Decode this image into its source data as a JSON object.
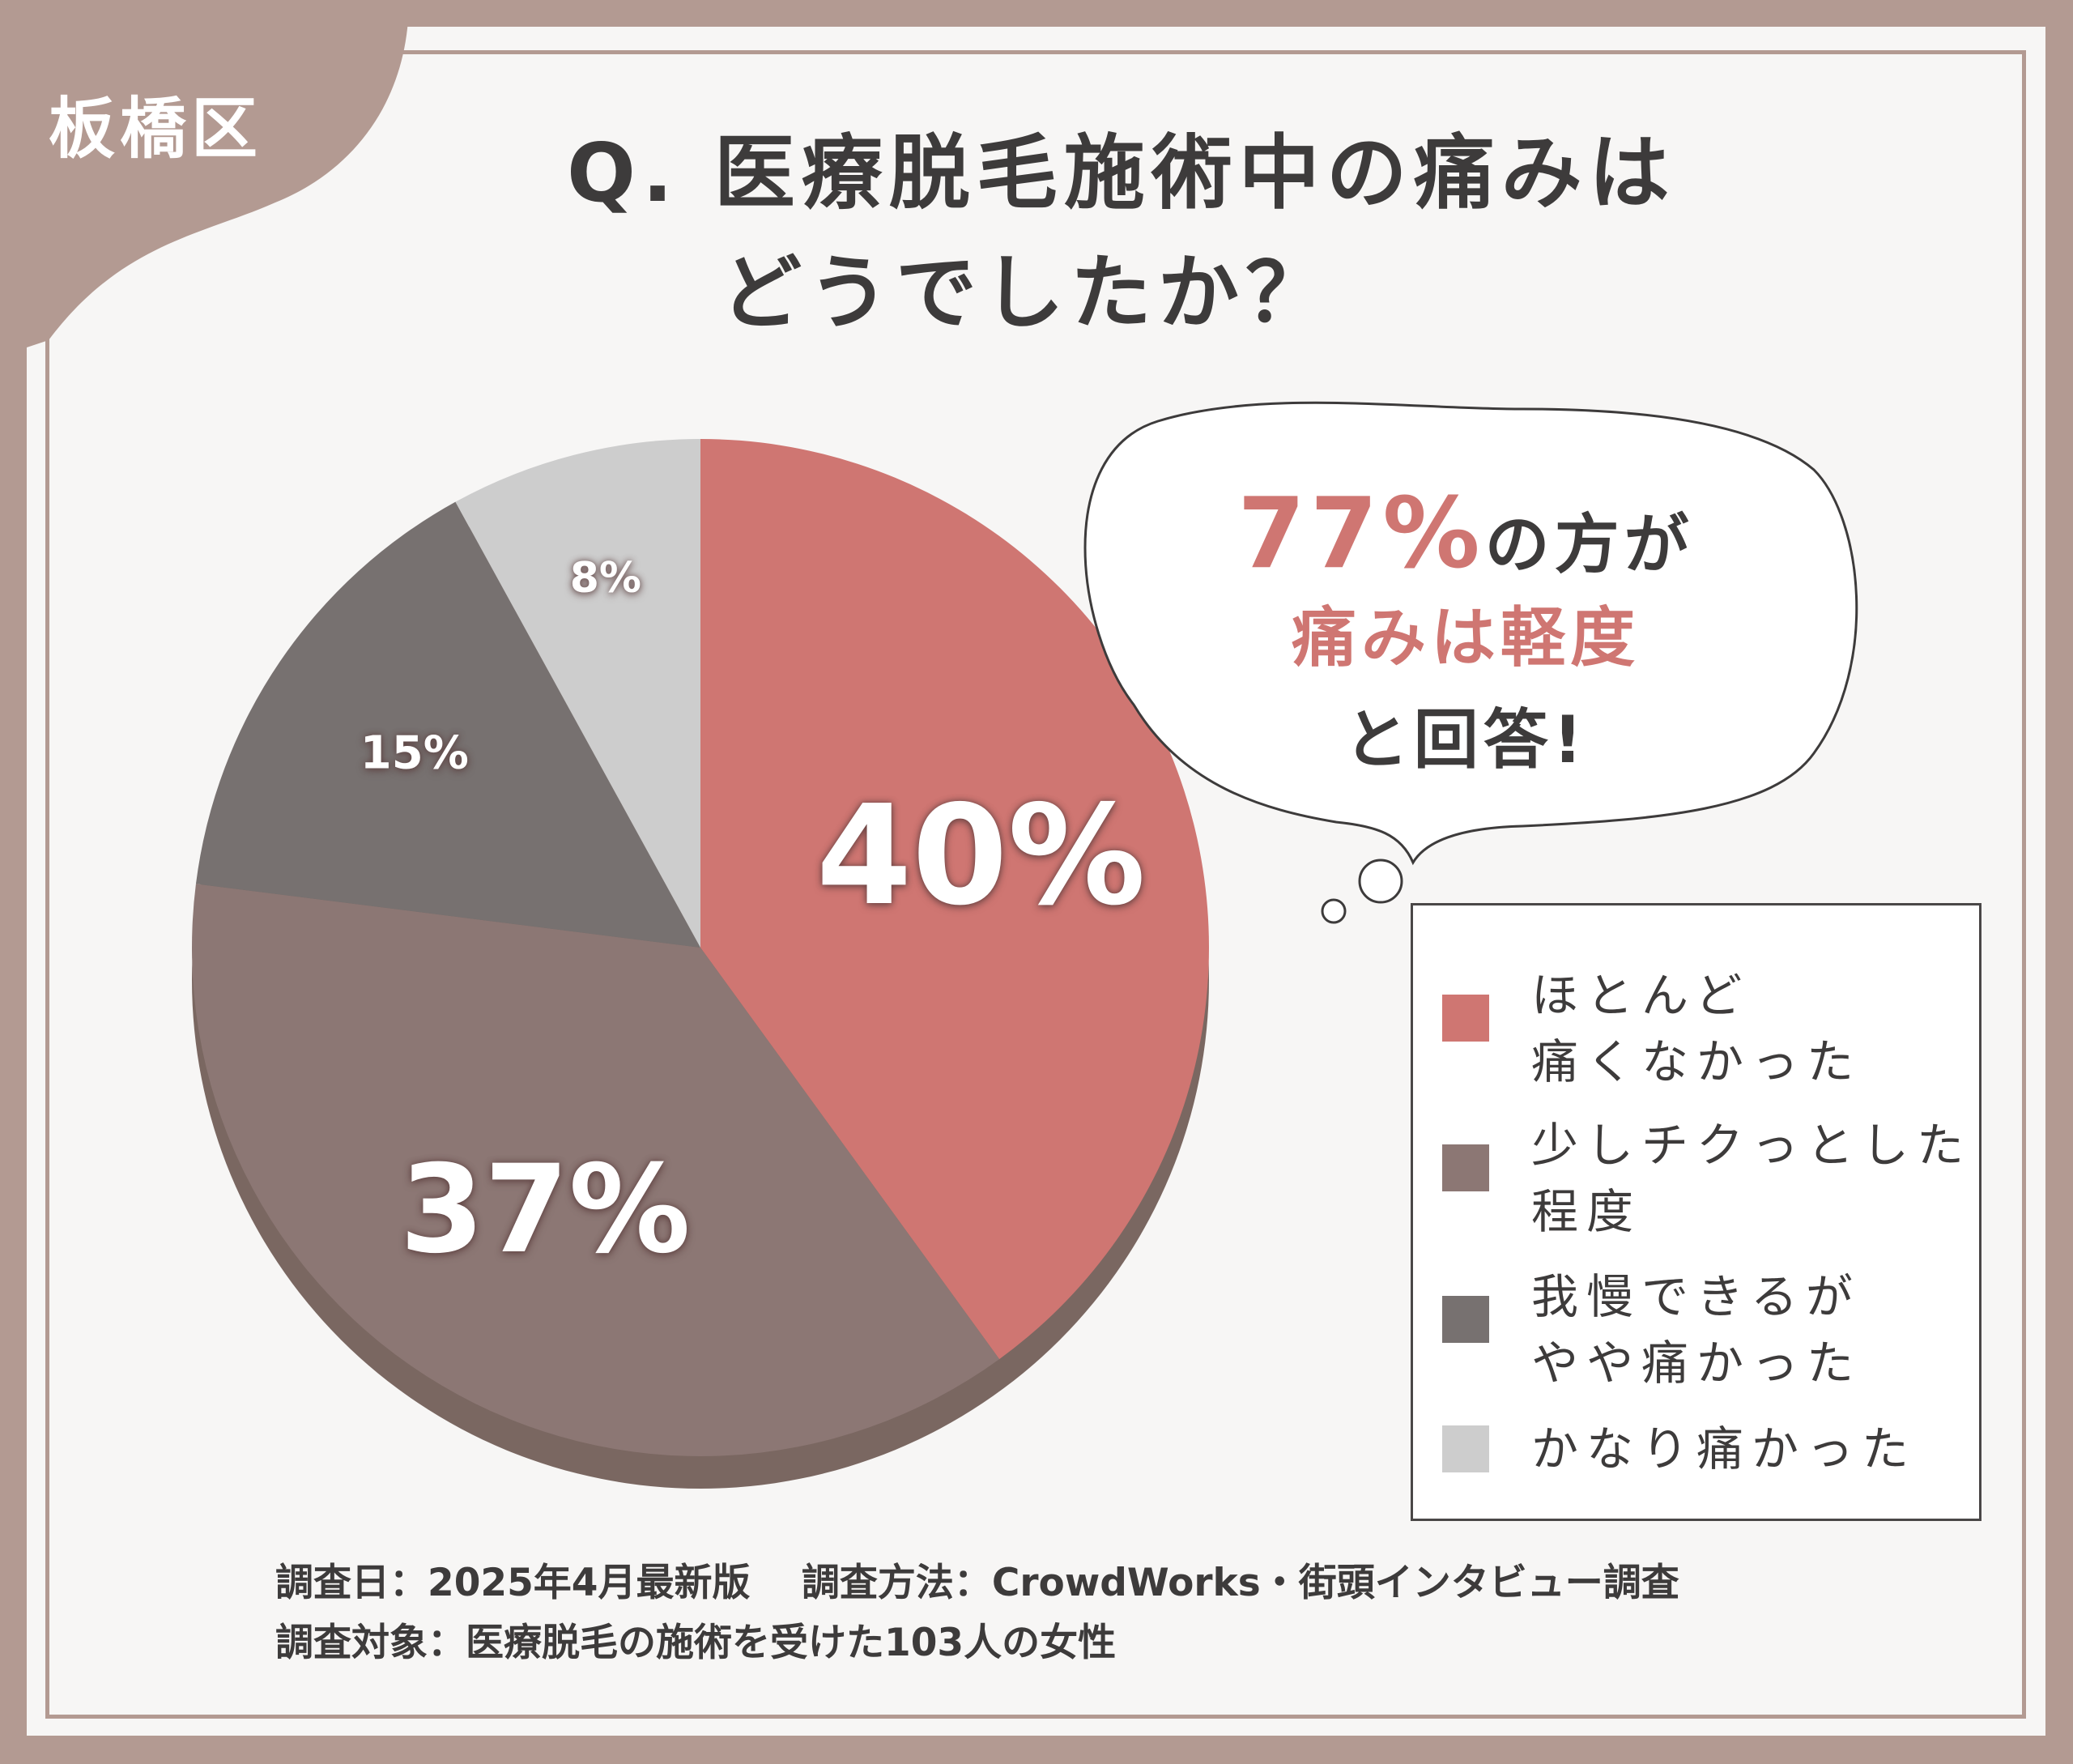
{
  "ward": "板橋区",
  "title": {
    "line1": "Q. 医療脱毛施術中の痛みは",
    "line2": "どうでしたか？"
  },
  "callout": {
    "highlight_number": "77%",
    "line1_rest": "の方が",
    "line2": "痛みは軽度",
    "line3": "と回答!"
  },
  "chart_data": {
    "type": "pie",
    "categories": [
      "ほとんど痛くなかった",
      "少しチクっとした程度",
      "我慢できるがやや痛かった",
      "かなり痛かった"
    ],
    "values": [
      40,
      37,
      15,
      8
    ],
    "value_labels": [
      "40%",
      "37%",
      "15%",
      "8%"
    ],
    "colors": [
      "#cf7672",
      "#8c7774",
      "#777170",
      "#cdcdcd"
    ],
    "legend_position": "right"
  },
  "legend": [
    {
      "line1": "ほとんど",
      "line2": "痛くなかった",
      "color": "#cf7672"
    },
    {
      "line1": "少しチクっとした",
      "line2": "程度",
      "color": "#8c7774"
    },
    {
      "line1": "我慢できるが",
      "line2": "やや痛かった",
      "color": "#777170"
    },
    {
      "line1": "かなり痛かった",
      "line2": "",
      "color": "#cdcdcd"
    }
  ],
  "footer": {
    "line1": "調査日：2025年4月最新版　 調査方法：CrowdWorks・街頭インタビュー調査",
    "line2": "調査対象：医療脱毛の施術を受けた103人の女性"
  }
}
